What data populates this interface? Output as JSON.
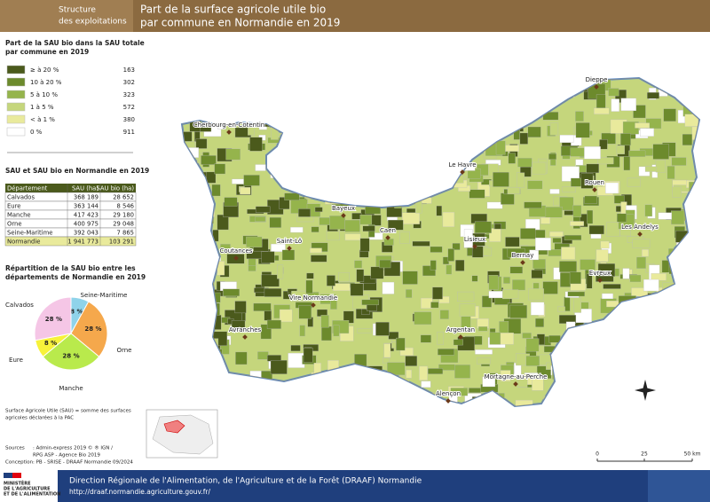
{
  "header": {
    "section": [
      "Structure",
      "des exploitations"
    ],
    "title": [
      "Part de la surface agricole utile bio",
      "par commune en Normandie en 2019"
    ]
  },
  "legend": {
    "title": [
      "Part de la SAU bio dans la SAU totale",
      "par commune en 2019"
    ],
    "items": [
      {
        "label": "≥ à 20 %",
        "count": 163,
        "color": "#4b5a1c"
      },
      {
        "label": "10 à 20 %",
        "count": 302,
        "color": "#6c8a2c"
      },
      {
        "label": "5 à 10 %",
        "count": 323,
        "color": "#95b44c"
      },
      {
        "label": "1 à 5 %",
        "count": 572,
        "color": "#c5d67c"
      },
      {
        "label": "< à 1 %",
        "count": 380,
        "color": "#e9ea9c"
      },
      {
        "label": "0 %",
        "count": 911,
        "color": "#ffffff"
      }
    ]
  },
  "table": {
    "title": "SAU et SAU bio en Normandie en 2019",
    "headers": [
      "Département",
      "SAU (ha)",
      "SAU bio (ha)"
    ],
    "rows": [
      [
        "Calvados",
        "368 189",
        "28 652"
      ],
      [
        "Eure",
        "363 144",
        "8 546"
      ],
      [
        "Manche",
        "417 423",
        "29 180"
      ],
      [
        "Orne",
        "400 975",
        "29 048"
      ],
      [
        "Seine-Maritime",
        "392 043",
        "7 865"
      ],
      [
        "Normandie",
        "1 941 773",
        "103 291"
      ]
    ]
  },
  "chart_data": {
    "type": "pie",
    "title": [
      "Répartition de la SAU bio entre les",
      "départements de Normandie en 2019"
    ],
    "categories": [
      "Seine-Maritime",
      "Orne",
      "Manche",
      "Eure",
      "Calvados"
    ],
    "values": [
      8,
      28,
      28,
      8,
      28
    ],
    "value_labels": [
      "8 %",
      "28 %",
      "28 %",
      "8 %",
      "28 %"
    ],
    "colors": [
      "#8fd3ea",
      "#f5a84c",
      "#b9ea4c",
      "#f7f23a",
      "#f5c6e6"
    ]
  },
  "notes": [
    "Surface Agricole Utile (SAU) = somme des surfaces",
    "agricoles déclarées à la PAC"
  ],
  "sources": [
    [
      "Sources",
      ": Admin-express 2019 © ® IGN /"
    ],
    [
      "",
      "RPG ASP - Agence Bio 2019"
    ],
    [
      "Conception",
      ": PB - SRISE - DRAAF Normandie 09/2024"
    ]
  ],
  "cities": [
    "Dieppe",
    "Cherbourg-en-Cotentin",
    "Le Havre",
    "Rouen",
    "Bayeux",
    "Caen",
    "Lisieux",
    "Les Andelys",
    "Saint-Lô",
    "Coutances",
    "Bernay",
    "Evreux",
    "Vire Normandie",
    "Avranches",
    "Argentan",
    "Mortagne-au-Perche",
    "Alençon"
  ],
  "scale": [
    "0",
    "25",
    "50 km"
  ],
  "footer": {
    "ministry": [
      "MINISTÈRE",
      "DE L'AGRICULTURE",
      "ET DE L'ALIMENTATION"
    ],
    "title": "Direction Régionale de l'Alimentation, de l'Agriculture et de la Forêt (DRAAF) Normandie",
    "url": "http://draaf.normandie.agriculture.gouv.fr/"
  }
}
